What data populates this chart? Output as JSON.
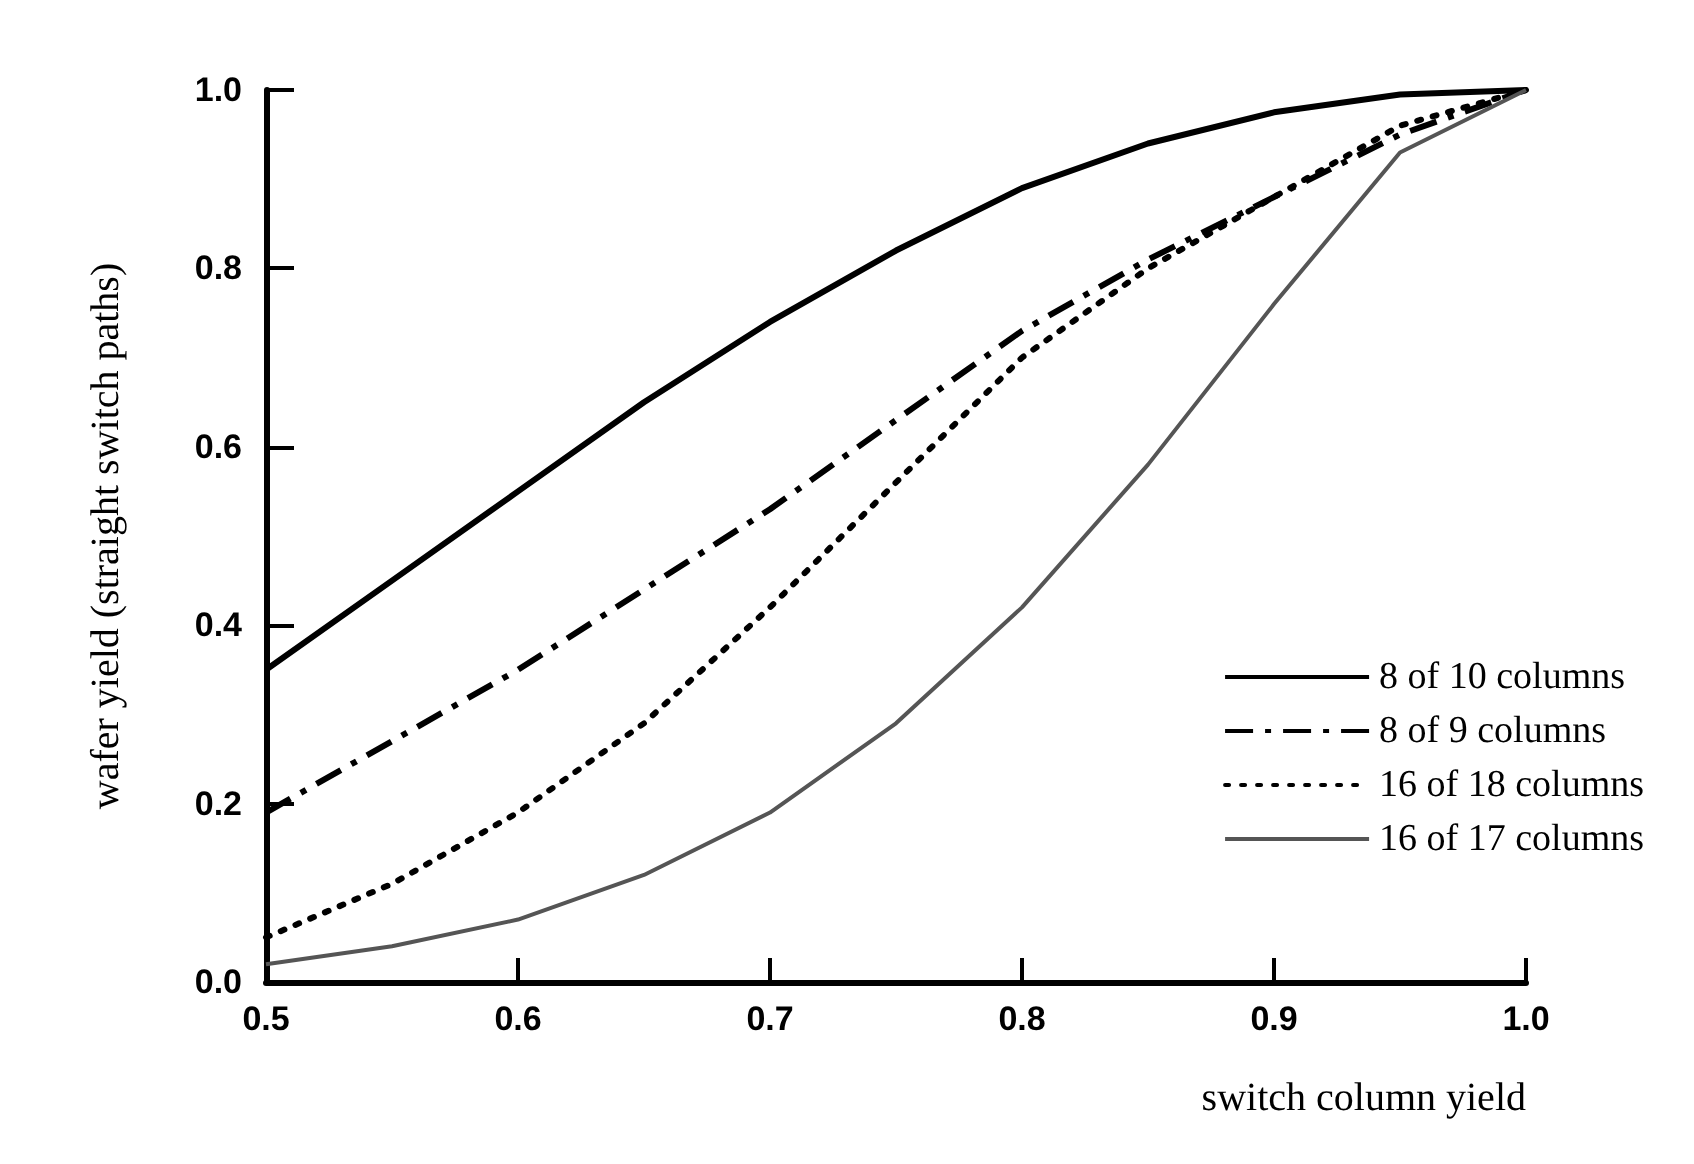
{
  "chart_data": {
    "type": "line",
    "xlabel": "switch column yield",
    "ylabel": "wafer yield (straight switch paths)",
    "x": [
      0.5,
      0.55,
      0.6,
      0.65,
      0.7,
      0.75,
      0.8,
      0.85,
      0.9,
      0.95,
      1.0
    ],
    "series": [
      {
        "name": "8 of 10 columns",
        "color": "#000000",
        "line_style": "solid",
        "values": [
          0.35,
          0.45,
          0.55,
          0.65,
          0.74,
          0.82,
          0.89,
          0.94,
          0.975,
          0.995,
          1.0
        ]
      },
      {
        "name": "8 of 9 columns",
        "color": "#000000",
        "line_style": "dashdot",
        "values": [
          0.19,
          0.27,
          0.35,
          0.44,
          0.53,
          0.63,
          0.73,
          0.81,
          0.88,
          0.95,
          1.0
        ]
      },
      {
        "name": "16 of 18 columns",
        "color": "#000000",
        "line_style": "dotted",
        "values": [
          0.05,
          0.11,
          0.19,
          0.29,
          0.42,
          0.56,
          0.7,
          0.8,
          0.88,
          0.96,
          1.0
        ]
      },
      {
        "name": "16 of 17 columns",
        "color": "#555555",
        "line_style": "solid",
        "values": [
          0.02,
          0.04,
          0.07,
          0.12,
          0.19,
          0.29,
          0.42,
          0.58,
          0.76,
          0.93,
          1.0
        ]
      }
    ],
    "xlim": [
      0.5,
      1.0
    ],
    "xticks": [
      0.5,
      0.6,
      0.7,
      0.8,
      0.9,
      {
        "value": 1.0,
        "label": "1.0"
      }
    ],
    "ylim": [
      0.0,
      1.0
    ],
    "yticks": [
      {
        "value": 0.0,
        "label": "0.0"
      },
      0.2,
      0.4,
      0.6,
      0.8,
      {
        "value": 1.0,
        "label": "1.0"
      }
    ],
    "grid": false,
    "legend": "bottom right",
    "marker": "none"
  }
}
